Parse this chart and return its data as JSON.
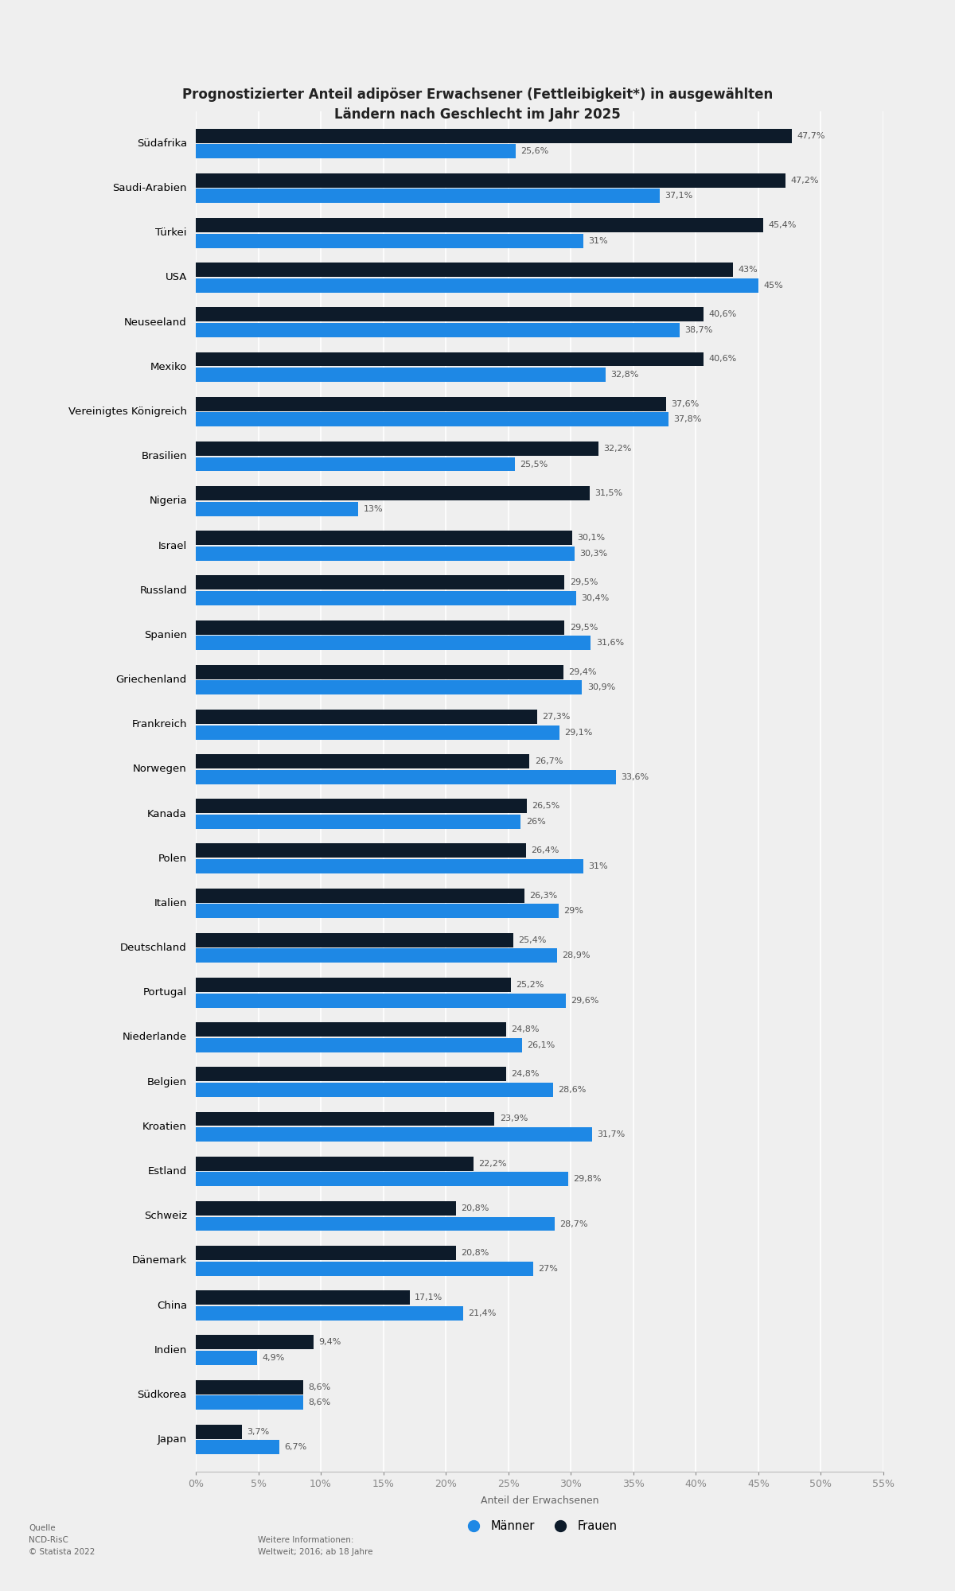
{
  "title": "Prognostizierter Anteil adipöser Erwachsener (Fettleibigkeit*) in ausgewählten\nLändern nach Geschlecht im Jahr 2025",
  "xlabel": "Anteil der Erwachsenen",
  "countries": [
    "Südafrika",
    "Saudi-Arabien",
    "Türkei",
    "USA",
    "Neuseeland",
    "Mexiko",
    "Vereinigtes Königreich",
    "Brasilien",
    "Nigeria",
    "Israel",
    "Russland",
    "Spanien",
    "Griechenland",
    "Frankreich",
    "Norwegen",
    "Kanada",
    "Polen",
    "Italien",
    "Deutschland",
    "Portugal",
    "Niederlande",
    "Belgien",
    "Kroatien",
    "Estland",
    "Schweiz",
    "Dänemark",
    "China",
    "Indien",
    "Südkorea",
    "Japan"
  ],
  "frauen": [
    47.7,
    47.2,
    45.4,
    43.0,
    40.6,
    40.6,
    37.6,
    32.2,
    31.5,
    30.1,
    29.5,
    29.5,
    29.4,
    27.3,
    26.7,
    26.5,
    26.4,
    26.3,
    25.4,
    25.2,
    24.8,
    24.8,
    23.9,
    22.2,
    20.8,
    20.8,
    17.1,
    9.4,
    8.6,
    3.7
  ],
  "maenner": [
    25.6,
    37.1,
    31.0,
    45.0,
    38.7,
    32.8,
    37.8,
    25.5,
    13.0,
    30.3,
    30.4,
    31.6,
    30.9,
    29.1,
    33.6,
    26.0,
    31.0,
    29.0,
    28.9,
    29.6,
    26.1,
    28.6,
    31.7,
    29.8,
    28.7,
    27.0,
    21.4,
    4.9,
    8.6,
    6.7
  ],
  "frauen_labels": [
    "47,7%",
    "47,2%",
    "45,4%",
    "43%",
    "40,6%",
    "40,6%",
    "37,6%",
    "32,2%",
    "31,5%",
    "30,1%",
    "29,5%",
    "29,5%",
    "29,4%",
    "27,3%",
    "26,7%",
    "26,5%",
    "26,4%",
    "26,3%",
    "25,4%",
    "25,2%",
    "24,8%",
    "24,8%",
    "23,9%",
    "22,2%",
    "20,8%",
    "20,8%",
    "17,1%",
    "9,4%",
    "8,6%",
    "3,7%"
  ],
  "maenner_labels": [
    "25,6%",
    "37,1%",
    "31%",
    "45%",
    "38,7%",
    "32,8%",
    "37,8%",
    "25,5%",
    "13%",
    "30,3%",
    "30,4%",
    "31,6%",
    "30,9%",
    "29,1%",
    "33,6%",
    "26%",
    "31%",
    "29%",
    "28,9%",
    "29,6%",
    "26,1%",
    "28,6%",
    "31,7%",
    "29,8%",
    "28,7%",
    "27%",
    "21,4%",
    "4,9%",
    "8,6%",
    "6,7%"
  ],
  "color_frauen": "#0d1b2a",
  "color_maenner": "#1e88e5",
  "background_color": "#efefef",
  "xlim": [
    0,
    55
  ],
  "xticks": [
    0,
    5,
    10,
    15,
    20,
    25,
    30,
    35,
    40,
    45,
    50,
    55
  ],
  "xtick_labels": [
    "0%",
    "5%",
    "10%",
    "15%",
    "20%",
    "25%",
    "30%",
    "35%",
    "40%",
    "45%",
    "50%",
    "55%"
  ],
  "legend_maenner": "Männer",
  "legend_frauen": "Frauen",
  "source_label": "Quelle\nNCD-RisC\n© Statista 2022",
  "info_label": "Weitere Informationen:\nWeltweit; 2016; ab 18 Jahre"
}
